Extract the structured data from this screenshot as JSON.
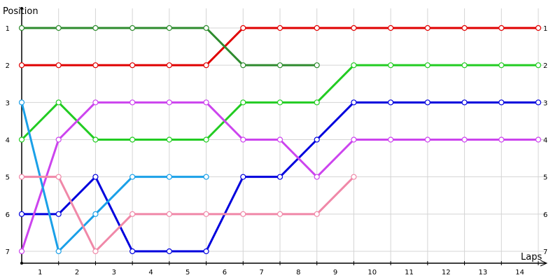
{
  "chart_data": {
    "type": "line",
    "title": "",
    "ylabel": "Position",
    "xlabel": "Laps",
    "x_categories": [
      "1",
      "2",
      "3",
      "4",
      "5",
      "6",
      "7",
      "8",
      "9",
      "10",
      "11",
      "12",
      "13",
      "14"
    ],
    "y_ticks": [
      "1",
      "2",
      "3",
      "4",
      "5",
      "6",
      "7"
    ],
    "right_y_ticks": [
      "1",
      "2",
      "3",
      "4",
      "5",
      "6",
      "7"
    ],
    "grid": true,
    "legend": "none",
    "x_points": [
      0,
      1,
      2,
      3,
      4,
      5,
      6,
      7,
      8,
      9,
      10,
      11,
      12,
      13,
      14
    ],
    "series": [
      {
        "color": "#e00000",
        "values": [
          2,
          2,
          2,
          2,
          2,
          2,
          1,
          1,
          1,
          1,
          1,
          1,
          1,
          1,
          1
        ]
      },
      {
        "color": "#2e8b2e",
        "values": [
          1,
          1,
          1,
          1,
          1,
          1,
          2,
          2,
          2,
          null,
          null,
          null,
          null,
          null,
          null
        ]
      },
      {
        "color": "#22cc22",
        "values": [
          4,
          3,
          4,
          4,
          4,
          4,
          3,
          3,
          3,
          2,
          2,
          2,
          2,
          2,
          2
        ]
      },
      {
        "color": "#0000dd",
        "values": [
          6,
          6,
          5,
          7,
          7,
          7,
          5,
          5,
          4,
          3,
          3,
          3,
          3,
          3,
          3
        ]
      },
      {
        "color": "#cc44ee",
        "values": [
          7,
          4,
          3,
          3,
          3,
          3,
          4,
          4,
          5,
          4,
          4,
          4,
          4,
          4,
          4
        ]
      },
      {
        "color": "#1aa0e8",
        "values": [
          3,
          7,
          6,
          5,
          5,
          5,
          null,
          null,
          null,
          null,
          null,
          null,
          null,
          null,
          null
        ]
      },
      {
        "color": "#f088a8",
        "values": [
          5,
          5,
          7,
          6,
          6,
          6,
          6,
          6,
          6,
          5,
          null,
          null,
          null,
          null,
          null
        ]
      }
    ]
  }
}
